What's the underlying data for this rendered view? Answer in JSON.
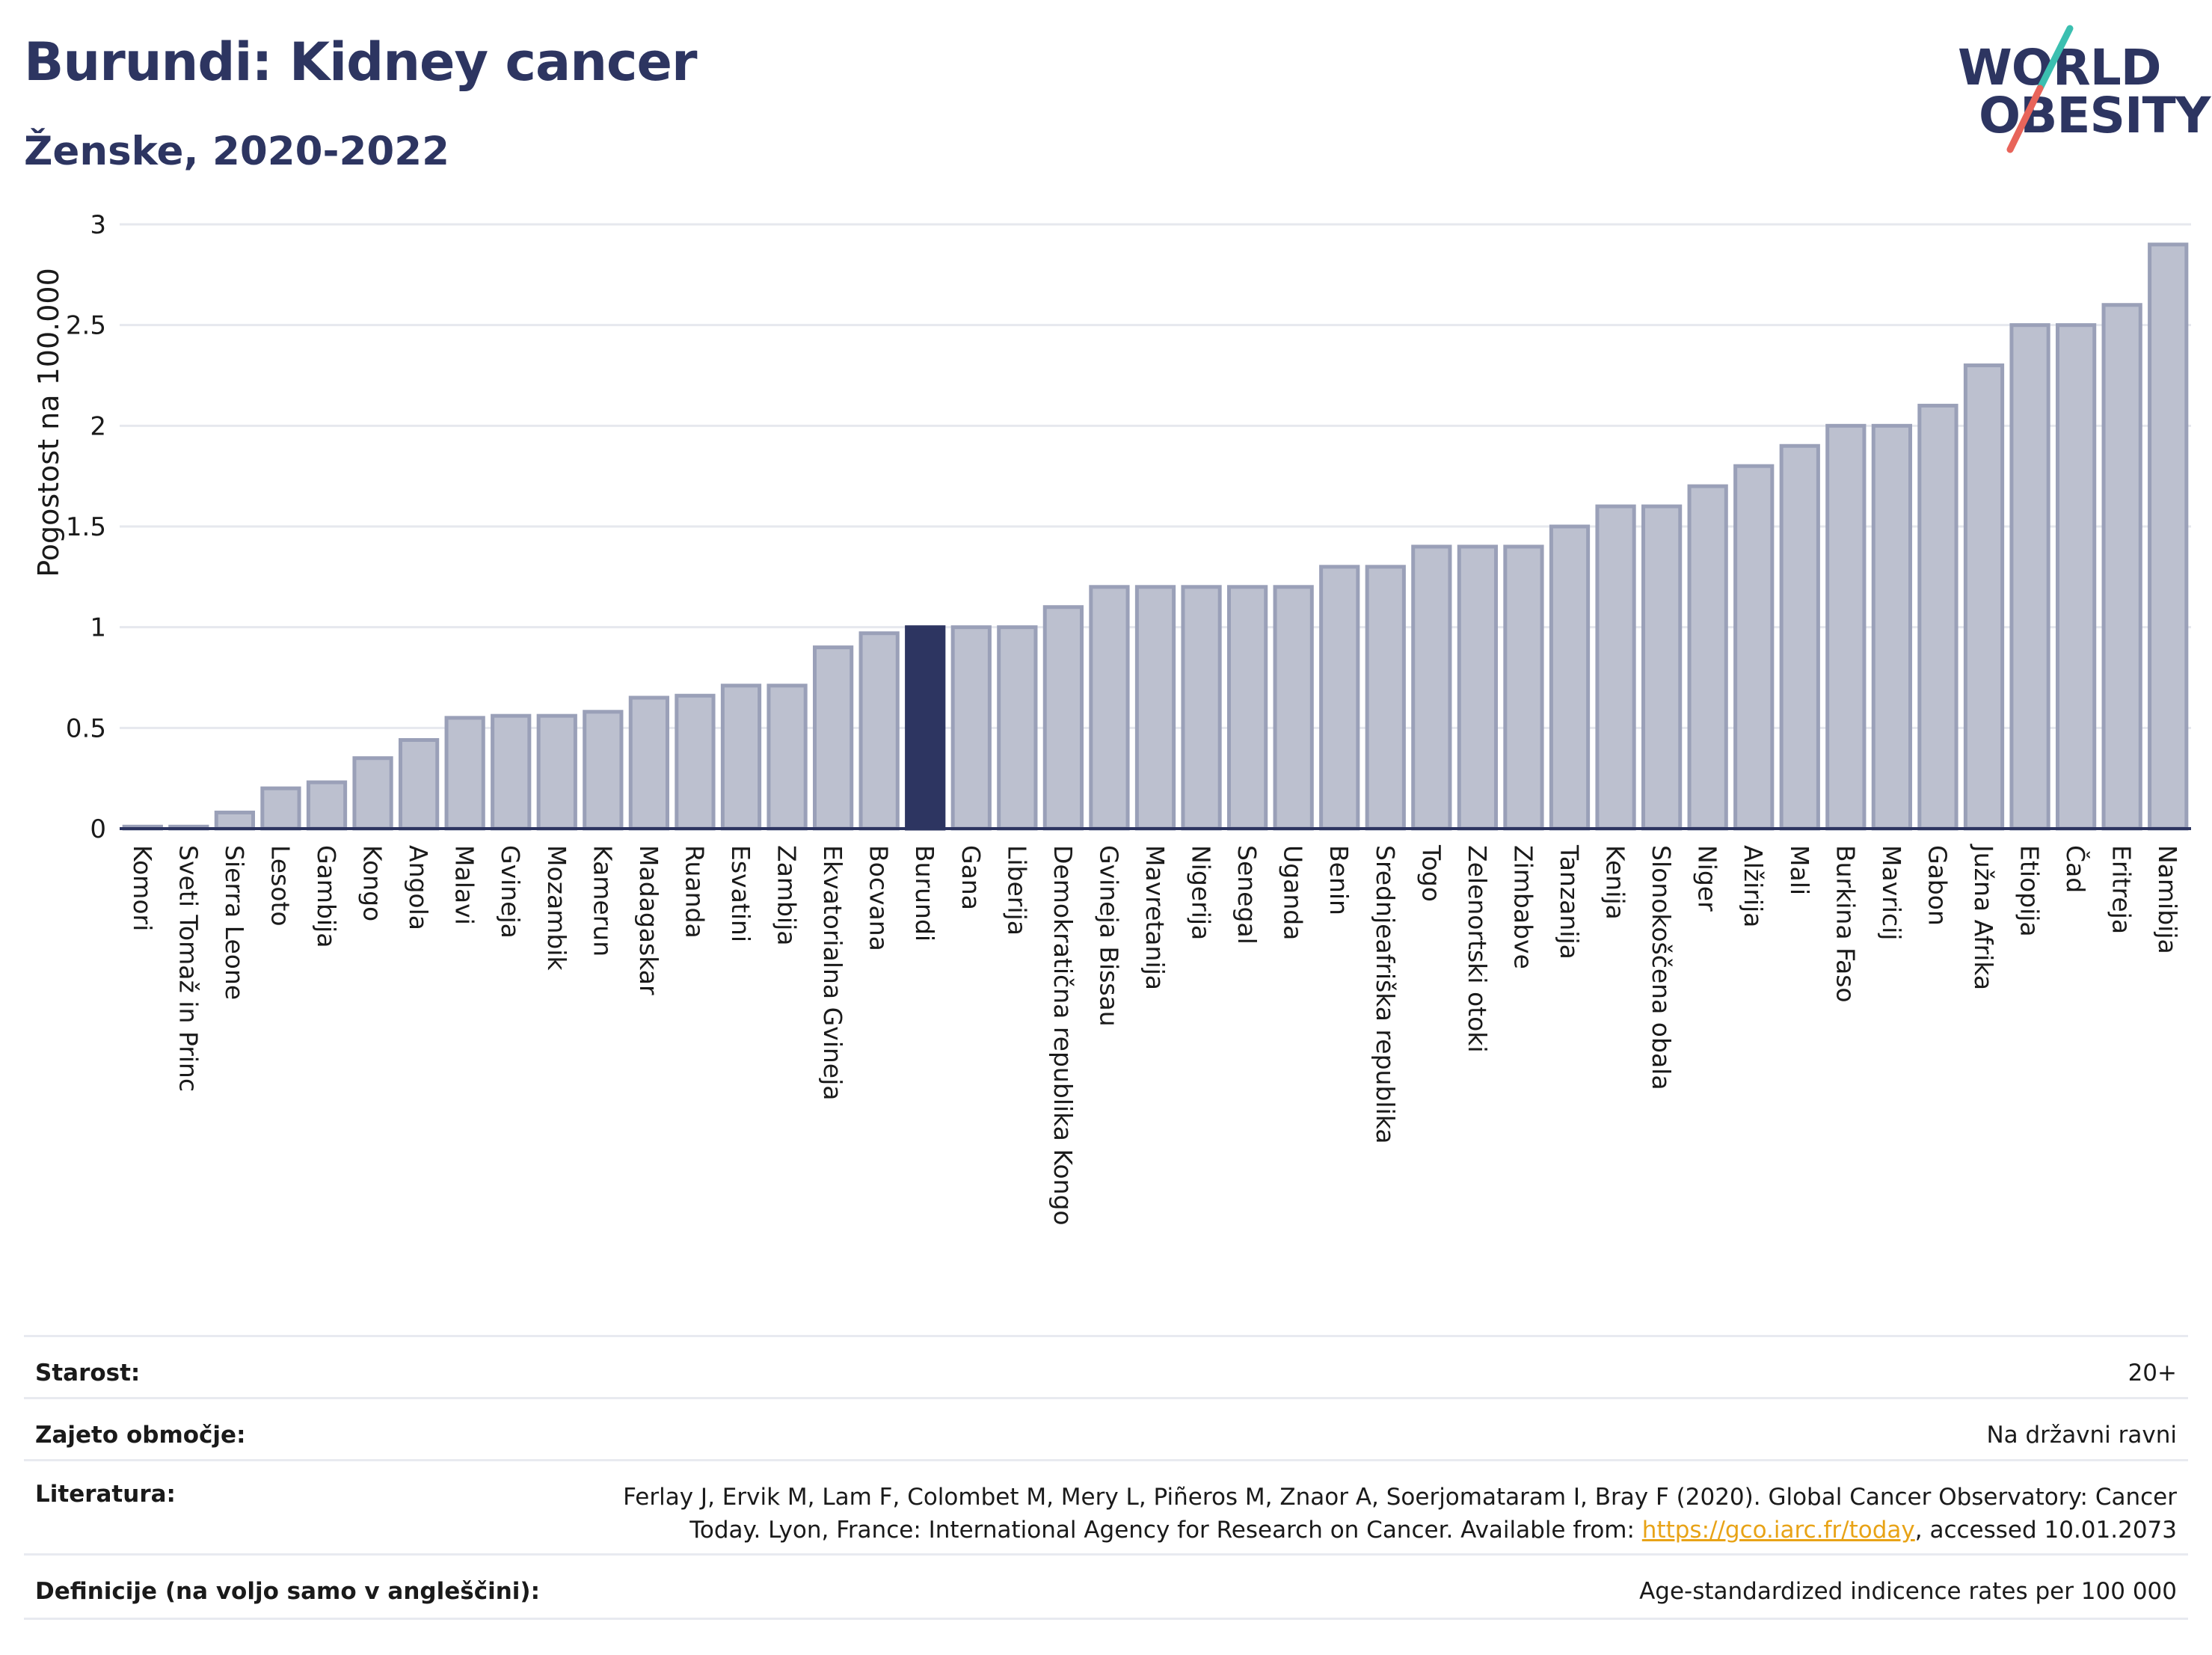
{
  "header": {
    "title": "Burundi: Kidney cancer",
    "subtitle": "Ženske, 2020-2022"
  },
  "logo": {
    "line1": "WORLD",
    "line2": "OBESITY",
    "accent_teal": "#3bbfb0",
    "accent_red": "#e8645a"
  },
  "colors": {
    "bar_fill": "#bcc0cf",
    "bar_stroke": "#9aa0b8",
    "highlight_fill": "#2d3561",
    "axis": "#2d3561",
    "grid": "#e6e8ee",
    "text": "#1a1a1a"
  },
  "chart_data": {
    "type": "bar",
    "title": "Burundi: Kidney cancer",
    "subtitle": "Ženske, 2020-2022",
    "ylabel": "Pogostost na 100.000",
    "xlabel": "",
    "ylim": [
      0,
      3
    ],
    "yticks": [
      "0",
      "0.5",
      "1",
      "1.5",
      "2",
      "2.5",
      "3"
    ],
    "ytick_values": [
      0,
      0.5,
      1,
      1.5,
      2,
      2.5,
      3
    ],
    "highlight": "Burundi",
    "grid": true,
    "categories": [
      "Komori",
      "Sveti Tomaž in Princ",
      "Sierra Leone",
      "Lesoto",
      "Gambija",
      "Kongo",
      "Angola",
      "Malavi",
      "Gvineja",
      "Mozambik",
      "Kamerun",
      "Madagaskar",
      "Ruanda",
      "Esvatini",
      "Zambija",
      "Ekvatorialna Gvineja",
      "Bocvana",
      "Burundi",
      "Gana",
      "Liberija",
      "Demokratična republika Kongo",
      "Gvineja Bissau",
      "Mavretanija",
      "Nigerija",
      "Senegal",
      "Uganda",
      "Benin",
      "Srednjeafriška republika",
      "Togo",
      "Zelenortski otoki",
      "Zimbabve",
      "Tanzanija",
      "Kenija",
      "Slonokoščena obala",
      "Niger",
      "Alžirija",
      "Mali",
      "Burkina Faso",
      "Mavricij",
      "Gabon",
      "Južna Afrika",
      "Etiopija",
      "Čad",
      "Eritreja",
      "Namibija"
    ],
    "values": [
      0.01,
      0.01,
      0.08,
      0.2,
      0.23,
      0.35,
      0.44,
      0.55,
      0.56,
      0.56,
      0.58,
      0.65,
      0.66,
      0.71,
      0.71,
      0.9,
      0.97,
      1.0,
      1.0,
      1.0,
      1.1,
      1.2,
      1.2,
      1.2,
      1.2,
      1.2,
      1.3,
      1.3,
      1.4,
      1.4,
      1.4,
      1.5,
      1.6,
      1.6,
      1.7,
      1.8,
      1.9,
      2.0,
      2.0,
      2.1,
      2.3,
      2.5,
      2.5,
      2.6,
      2.9
    ]
  },
  "info": {
    "rows": [
      {
        "label": "Starost:",
        "value": "20+"
      },
      {
        "label": "Zajeto območje:",
        "value": "Na državni ravni"
      },
      {
        "label": "Literatura:",
        "value_line1": "Ferlay J, Ervik M, Lam F, Colombet M, Mery L, Piñeros M, Znaor A, Soerjomataram I, Bray F (2020). Global Cancer Observatory: Cancer",
        "value_line2_pre": "Today. Lyon, France: International Agency for Research on Cancer. Available from: ",
        "link": "https://gco.iarc.fr/today",
        "value_line2_post": ", accessed 10.01.2073"
      },
      {
        "label": "Definicije (na voljo samo v angleščini):",
        "value": "Age-standardized indicence rates per 100 000"
      }
    ]
  }
}
